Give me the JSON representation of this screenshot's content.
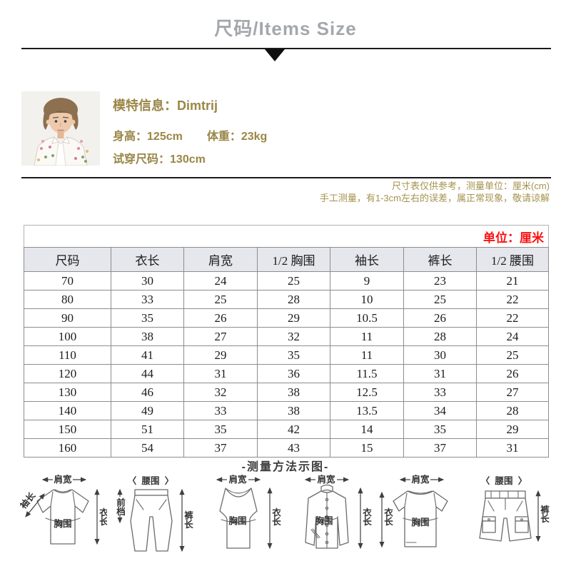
{
  "header": {
    "title": "尺码/Items Size"
  },
  "model": {
    "info_label": "模特信息：",
    "name": "Dimtrij",
    "height_label": "身高：",
    "height": "125cm",
    "weight_label": "体重：",
    "weight": "23kg",
    "fit_label": "试穿尺码：",
    "fit": "130cm"
  },
  "notes": {
    "line1": "尺寸表仅供参考，测量单位：厘米(cm)",
    "line2": "手工测量，有1-3cm左右的误差，属正常现象，敬请谅解"
  },
  "table": {
    "unit": "单位：厘米",
    "headers": [
      "尺码",
      "衣长",
      "肩宽",
      "1/2 胸围",
      "袖长",
      "裤长",
      "1/2 腰围"
    ],
    "rows": [
      [
        "70",
        "30",
        "24",
        "25",
        "9",
        "23",
        "21"
      ],
      [
        "80",
        "33",
        "25",
        "28",
        "10",
        "25",
        "22"
      ],
      [
        "90",
        "35",
        "26",
        "29",
        "10.5",
        "26",
        "22"
      ],
      [
        "100",
        "38",
        "27",
        "32",
        "11",
        "28",
        "24"
      ],
      [
        "110",
        "41",
        "29",
        "35",
        "11",
        "30",
        "25"
      ],
      [
        "120",
        "44",
        "31",
        "36",
        "11.5",
        "31",
        "26"
      ],
      [
        "130",
        "46",
        "32",
        "38",
        "12.5",
        "33",
        "27"
      ],
      [
        "140",
        "49",
        "33",
        "38",
        "13.5",
        "34",
        "28"
      ],
      [
        "150",
        "51",
        "35",
        "42",
        "14",
        "35",
        "29"
      ],
      [
        "160",
        "54",
        "37",
        "43",
        "15",
        "37",
        "31"
      ]
    ]
  },
  "measure": {
    "title": "-测量方法示图-",
    "diagrams": [
      {
        "id": "tshirt-front",
        "labels": {
          "top": "肩宽",
          "left": "袖长",
          "center": "胸围",
          "right": "衣长"
        }
      },
      {
        "id": "pants",
        "labels": {
          "top": "腰围",
          "left": "前档",
          "right": "裤长"
        }
      },
      {
        "id": "vest",
        "labels": {
          "top": "肩宽",
          "center": "胸围",
          "right": "衣长"
        }
      },
      {
        "id": "jacket",
        "labels": {
          "top": "肩宽",
          "center": "胸围",
          "right": "衣长"
        }
      },
      {
        "id": "tshirt-2",
        "labels": {
          "top": "肩宽",
          "left": "衣长",
          "center": "胸围"
        }
      },
      {
        "id": "shorts",
        "labels": {
          "top": "腰围",
          "right": "裤长"
        }
      }
    ]
  },
  "icons": {
    "bracket_left": "〈",
    "bracket_right": "〉"
  },
  "colors": {
    "title_gray": "#a4a8ac",
    "model_gold": "#9a8647",
    "note_gold": "#a6934f",
    "unit_red": "#fb1111",
    "table_border": "#8d8d8d",
    "header_bg": "#e6e6ed",
    "diagram_line": "#6b6b6b"
  }
}
